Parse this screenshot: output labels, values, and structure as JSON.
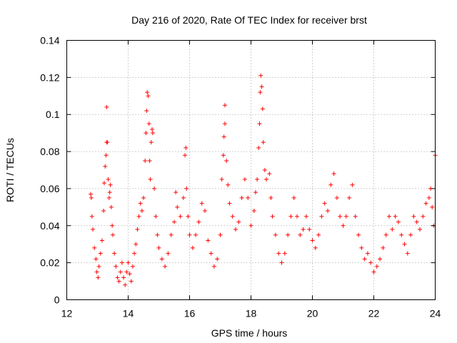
{
  "chart_data": {
    "type": "scatter",
    "title": "Day 216 of 2020, Rate Of TEC Index for receiver brst",
    "xlabel": "GPS time / hours",
    "ylabel": "ROTI / TECUs",
    "xlim": [
      12,
      24
    ],
    "ylim": [
      0,
      0.14
    ],
    "xticks": [
      12,
      14,
      16,
      18,
      20,
      22,
      24
    ],
    "xtick_labels": [
      "12",
      "14",
      "16",
      "18",
      "20",
      "22",
      "24"
    ],
    "yticks": [
      0,
      0.02,
      0.04,
      0.06,
      0.08,
      0.1,
      0.12,
      0.14
    ],
    "ytick_labels": [
      "0",
      "0.02",
      "0.04",
      "0.06",
      "0.08",
      "0.1",
      "0.12",
      "0.14"
    ],
    "grid": true,
    "marker": "+",
    "color": "#ff0000",
    "series": [
      {
        "points": [
          [
            12.78,
            0.057
          ],
          [
            12.8,
            0.055
          ],
          [
            12.82,
            0.045
          ],
          [
            12.85,
            0.038
          ],
          [
            12.9,
            0.028
          ],
          [
            12.95,
            0.022
          ],
          [
            12.98,
            0.015
          ],
          [
            13.02,
            0.012
          ],
          [
            13.05,
            0.018
          ],
          [
            13.1,
            0.025
          ],
          [
            13.15,
            0.032
          ],
          [
            13.2,
            0.048
          ],
          [
            13.22,
            0.063
          ],
          [
            13.25,
            0.072
          ],
          [
            13.28,
            0.078
          ],
          [
            13.3,
            0.085
          ],
          [
            13.3,
            0.104
          ],
          [
            13.32,
            0.085
          ],
          [
            13.35,
            0.065
          ],
          [
            13.38,
            0.055
          ],
          [
            13.4,
            0.058
          ],
          [
            13.42,
            0.062
          ],
          [
            13.45,
            0.05
          ],
          [
            13.48,
            0.04
          ],
          [
            13.5,
            0.035
          ],
          [
            13.55,
            0.025
          ],
          [
            13.6,
            0.018
          ],
          [
            13.65,
            0.012
          ],
          [
            13.7,
            0.01
          ],
          [
            13.75,
            0.015
          ],
          [
            13.8,
            0.02
          ],
          [
            13.85,
            0.012
          ],
          [
            13.9,
            0.008
          ],
          [
            13.95,
            0.015
          ],
          [
            14.0,
            0.02
          ],
          [
            14.05,
            0.014
          ],
          [
            14.1,
            0.01
          ],
          [
            14.15,
            0.018
          ],
          [
            14.2,
            0.025
          ],
          [
            14.25,
            0.03
          ],
          [
            14.3,
            0.038
          ],
          [
            14.35,
            0.045
          ],
          [
            14.4,
            0.052
          ],
          [
            14.45,
            0.048
          ],
          [
            14.5,
            0.055
          ],
          [
            14.55,
            0.075
          ],
          [
            14.58,
            0.09
          ],
          [
            14.6,
            0.102
          ],
          [
            14.62,
            0.112
          ],
          [
            14.65,
            0.11
          ],
          [
            14.68,
            0.095
          ],
          [
            14.7,
            0.075
          ],
          [
            14.72,
            0.065
          ],
          [
            14.75,
            0.085
          ],
          [
            14.78,
            0.092
          ],
          [
            14.8,
            0.09
          ],
          [
            14.85,
            0.06
          ],
          [
            14.9,
            0.045
          ],
          [
            14.95,
            0.035
          ],
          [
            15.0,
            0.028
          ],
          [
            15.1,
            0.022
          ],
          [
            15.2,
            0.018
          ],
          [
            15.3,
            0.025
          ],
          [
            15.4,
            0.035
          ],
          [
            15.5,
            0.042
          ],
          [
            15.55,
            0.058
          ],
          [
            15.6,
            0.05
          ],
          [
            15.7,
            0.045
          ],
          [
            15.8,
            0.055
          ],
          [
            15.85,
            0.078
          ],
          [
            15.88,
            0.082
          ],
          [
            15.9,
            0.06
          ],
          [
            15.95,
            0.045
          ],
          [
            16.0,
            0.035
          ],
          [
            16.1,
            0.028
          ],
          [
            16.2,
            0.035
          ],
          [
            16.3,
            0.042
          ],
          [
            16.4,
            0.052
          ],
          [
            16.5,
            0.048
          ],
          [
            16.6,
            0.032
          ],
          [
            16.7,
            0.025
          ],
          [
            16.8,
            0.018
          ],
          [
            16.9,
            0.022
          ],
          [
            17.0,
            0.035
          ],
          [
            17.05,
            0.065
          ],
          [
            17.1,
            0.078
          ],
          [
            17.12,
            0.088
          ],
          [
            17.15,
            0.095
          ],
          [
            17.15,
            0.105
          ],
          [
            17.2,
            0.075
          ],
          [
            17.25,
            0.062
          ],
          [
            17.3,
            0.052
          ],
          [
            17.4,
            0.045
          ],
          [
            17.5,
            0.038
          ],
          [
            17.6,
            0.042
          ],
          [
            17.7,
            0.055
          ],
          [
            17.8,
            0.065
          ],
          [
            17.9,
            0.055
          ],
          [
            18.0,
            0.04
          ],
          [
            18.1,
            0.048
          ],
          [
            18.15,
            0.058
          ],
          [
            18.2,
            0.065
          ],
          [
            18.25,
            0.082
          ],
          [
            18.28,
            0.095
          ],
          [
            18.3,
            0.112
          ],
          [
            18.32,
            0.121
          ],
          [
            18.35,
            0.115
          ],
          [
            18.38,
            0.103
          ],
          [
            18.4,
            0.085
          ],
          [
            18.45,
            0.07
          ],
          [
            18.5,
            0.065
          ],
          [
            18.6,
            0.068
          ],
          [
            18.65,
            0.055
          ],
          [
            18.7,
            0.045
          ],
          [
            18.8,
            0.035
          ],
          [
            18.9,
            0.025
          ],
          [
            19.0,
            0.02
          ],
          [
            19.1,
            0.025
          ],
          [
            19.2,
            0.035
          ],
          [
            19.3,
            0.045
          ],
          [
            19.4,
            0.055
          ],
          [
            19.5,
            0.045
          ],
          [
            19.6,
            0.035
          ],
          [
            19.7,
            0.038
          ],
          [
            19.8,
            0.045
          ],
          [
            19.9,
            0.038
          ],
          [
            20.0,
            0.032
          ],
          [
            20.1,
            0.028
          ],
          [
            20.2,
            0.035
          ],
          [
            20.3,
            0.045
          ],
          [
            20.4,
            0.052
          ],
          [
            20.5,
            0.048
          ],
          [
            20.6,
            0.062
          ],
          [
            20.7,
            0.068
          ],
          [
            20.8,
            0.055
          ],
          [
            20.9,
            0.045
          ],
          [
            21.0,
            0.04
          ],
          [
            21.1,
            0.045
          ],
          [
            21.2,
            0.055
          ],
          [
            21.3,
            0.062
          ],
          [
            21.4,
            0.045
          ],
          [
            21.5,
            0.035
          ],
          [
            21.6,
            0.028
          ],
          [
            21.7,
            0.022
          ],
          [
            21.8,
            0.025
          ],
          [
            21.9,
            0.02
          ],
          [
            22.0,
            0.015
          ],
          [
            22.1,
            0.018
          ],
          [
            22.2,
            0.022
          ],
          [
            22.3,
            0.028
          ],
          [
            22.4,
            0.035
          ],
          [
            22.5,
            0.045
          ],
          [
            22.6,
            0.038
          ],
          [
            22.7,
            0.045
          ],
          [
            22.8,
            0.042
          ],
          [
            22.9,
            0.035
          ],
          [
            23.0,
            0.03
          ],
          [
            23.1,
            0.025
          ],
          [
            23.2,
            0.035
          ],
          [
            23.3,
            0.045
          ],
          [
            23.4,
            0.042
          ],
          [
            23.5,
            0.038
          ],
          [
            23.6,
            0.045
          ],
          [
            23.7,
            0.052
          ],
          [
            23.8,
            0.055
          ],
          [
            23.85,
            0.06
          ],
          [
            23.9,
            0.05
          ],
          [
            23.95,
            0.04
          ],
          [
            24.0,
            0.078
          ]
        ]
      }
    ]
  }
}
